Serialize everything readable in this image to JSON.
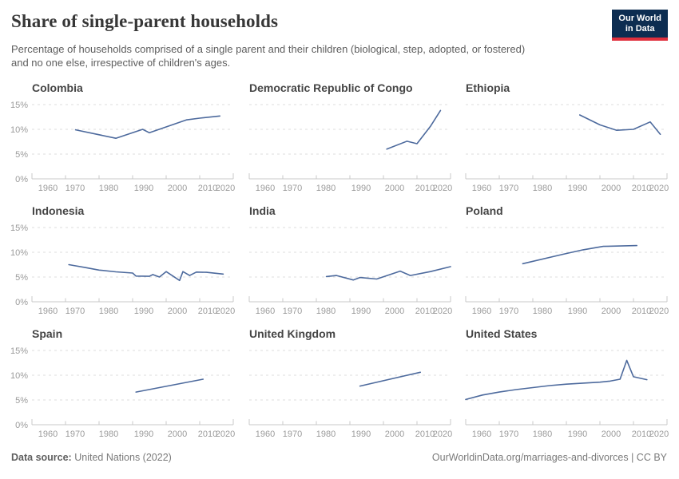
{
  "header": {
    "title": "Share of single-parent households",
    "subtitle_lines": [
      "Percentage of households comprised of a single parent and their children (biological, step, adopted, or fostered)",
      "and no one else, irrespective of children's ages."
    ],
    "logo": {
      "line1": "Our World",
      "line2": "in Data"
    }
  },
  "axis": {
    "x_domain": [
      1960,
      2020
    ],
    "x_ticks": [
      1960,
      1970,
      1980,
      1990,
      2000,
      2010,
      2020
    ],
    "x_tick_labels": [
      "1960",
      "1970",
      "1980",
      "1990",
      "2000",
      "2010",
      "2020"
    ],
    "y_ticks": [
      0,
      5,
      10,
      15
    ],
    "y_tick_labels": [
      "0%",
      "5%",
      "10%",
      "15%"
    ],
    "grid": "dashed-horizontal",
    "y_labels_on_first_column_only": true
  },
  "colors": {
    "line": "#4d6a9d",
    "grid": "#dcdcdc",
    "axis": "#c9c9c9",
    "tick_label": "#9b9b9b",
    "main_title": "#373737",
    "subtitle": "#5e5e5e",
    "chart_title": "#454545",
    "footer": "#7a7a7a",
    "logo_bg": "#0d2d51",
    "logo_red": "#e0303d"
  },
  "chart_data": [
    {
      "type": "line",
      "title": "Colombia",
      "unit": "%",
      "ylim": [
        0,
        15
      ],
      "x": [
        1973,
        1985,
        1993,
        1995,
        2006,
        2010,
        2016
      ],
      "y": [
        9.9,
        8.2,
        10.0,
        9.3,
        11.9,
        12.25,
        12.7
      ]
    },
    {
      "type": "line",
      "title": "Democratic Republic of Congo",
      "unit": "%",
      "ylim": [
        0,
        15
      ],
      "x": [
        2001,
        2007,
        2010,
        2014,
        2017
      ],
      "y": [
        6.0,
        7.6,
        7.1,
        10.6,
        13.8
      ]
    },
    {
      "type": "line",
      "title": "Ethiopia",
      "unit": "%",
      "ylim": [
        0,
        15
      ],
      "x": [
        1994,
        2000,
        2005,
        2010,
        2015,
        2018
      ],
      "y": [
        12.9,
        10.9,
        9.8,
        10.0,
        11.5,
        9.0
      ]
    },
    {
      "type": "line",
      "title": "Indonesia",
      "unit": "%",
      "ylim": [
        0,
        15
      ],
      "x": [
        1971,
        1976,
        1980,
        1985,
        1990,
        1991,
        1995,
        1996,
        1998,
        2000,
        2004,
        2005,
        2007,
        2009,
        2012,
        2017
      ],
      "y": [
        7.5,
        6.9,
        6.4,
        6.05,
        5.8,
        5.2,
        5.15,
        5.5,
        5.0,
        6.1,
        4.3,
        6.1,
        5.3,
        6.0,
        5.95,
        5.6
      ]
    },
    {
      "type": "line",
      "title": "India",
      "unit": "%",
      "ylim": [
        0,
        15
      ],
      "x": [
        1983,
        1986,
        1991,
        1993,
        1998,
        2005,
        2008,
        2014,
        2020
      ],
      "y": [
        5.1,
        5.3,
        4.4,
        4.9,
        4.6,
        6.2,
        5.3,
        6.1,
        7.1
      ]
    },
    {
      "type": "line",
      "title": "Poland",
      "unit": "%",
      "ylim": [
        0,
        15
      ],
      "x": [
        1977,
        1989,
        1995,
        2001,
        2011
      ],
      "y": [
        7.7,
        9.6,
        10.5,
        11.2,
        11.35
      ]
    },
    {
      "type": "line",
      "title": "Spain",
      "unit": "%",
      "ylim": [
        0,
        15
      ],
      "x": [
        1991,
        2011
      ],
      "y": [
        6.6,
        9.2
      ]
    },
    {
      "type": "line",
      "title": "United Kingdom",
      "unit": "%",
      "ylim": [
        0,
        15
      ],
      "x": [
        1993,
        2011
      ],
      "y": [
        7.8,
        10.6
      ]
    },
    {
      "type": "line",
      "title": "United States",
      "unit": "%",
      "ylim": [
        0,
        15
      ],
      "x": [
        1960,
        1965,
        1970,
        1975,
        1980,
        1985,
        1990,
        1995,
        2000,
        2003,
        2006,
        2008,
        2010,
        2014
      ],
      "y": [
        5.1,
        6.0,
        6.6,
        7.1,
        7.5,
        7.9,
        8.2,
        8.4,
        8.6,
        8.8,
        9.2,
        13.0,
        9.7,
        9.1
      ]
    }
  ],
  "footer": {
    "source_label": "Data source:",
    "source_value": "United Nations (2022)",
    "right_text": "OurWorldinData.org/marriages-and-divorces | CC BY"
  }
}
